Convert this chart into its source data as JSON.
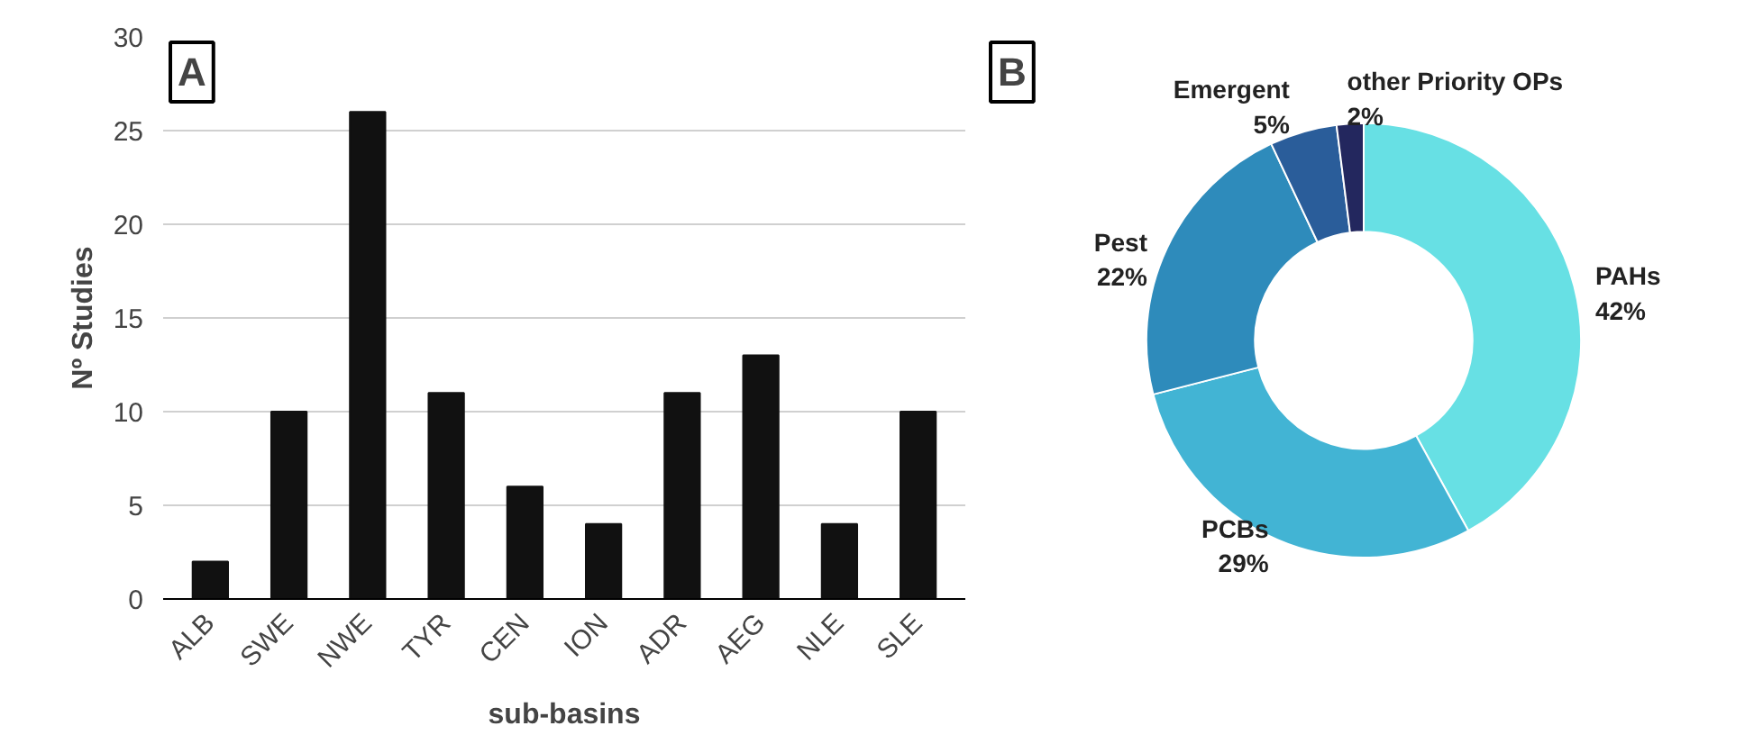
{
  "chart_data": [
    {
      "type": "bar",
      "categories": [
        "ALB",
        "SWE",
        "NWE",
        "TYR",
        "CEN",
        "ION",
        "ADR",
        "AEG",
        "NLE",
        "SLE"
      ],
      "values": [
        2,
        10,
        26,
        11,
        6,
        4,
        11,
        13,
        4,
        10
      ],
      "color": "#111111",
      "ylim": [
        0,
        30
      ],
      "yticks": [
        0,
        5,
        10,
        15,
        20,
        25,
        30
      ],
      "grid": "y",
      "xlabel": "sub-basins",
      "ylabel": "Nº Studies",
      "annotations": [
        "A"
      ]
    },
    {
      "type": "donut",
      "categories": [
        "PAHs",
        "PCBs",
        "Pest",
        "Emergent",
        "other Priority OPs"
      ],
      "values": [
        42,
        29,
        22,
        5,
        2
      ],
      "colors": [
        "#67e0e4",
        "#42b4d4",
        "#2e8bbb",
        "#2a5d9a",
        "#23275e"
      ],
      "value_labels": [
        "42%",
        "29%",
        "22%",
        "5%",
        "2%"
      ],
      "annotations": [
        "B"
      ]
    }
  ]
}
